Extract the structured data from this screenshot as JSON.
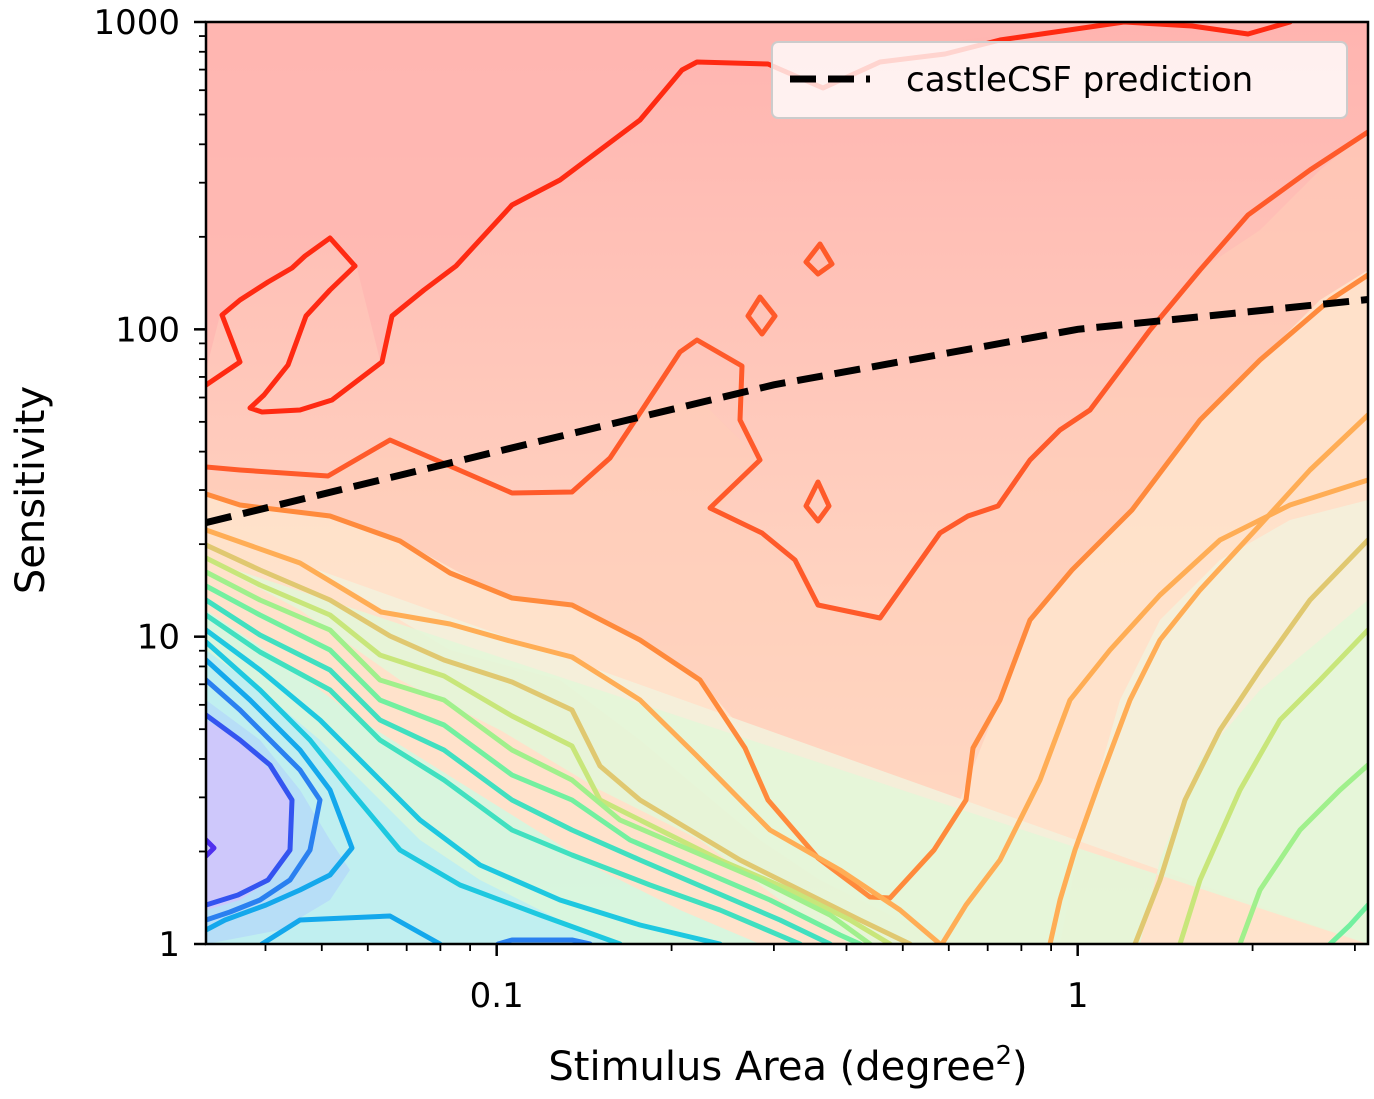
{
  "chart_data": {
    "type": "contour",
    "xlabel": "Stimulus Area (degree",
    "xlabel_superscript": "2",
    "xlabel_suffix": ")",
    "ylabel": "Sensitivity",
    "xscale": "log",
    "yscale": "log",
    "xlim": [
      0.0316,
      3.16
    ],
    "ylim": [
      1,
      1000
    ],
    "x_ticks": [
      {
        "value": 0.1,
        "label": "0.1"
      },
      {
        "value": 1,
        "label": "1"
      }
    ],
    "y_ticks": [
      {
        "value": 1,
        "label": "1"
      },
      {
        "value": 10,
        "label": "10"
      },
      {
        "value": 100,
        "label": "100"
      },
      {
        "value": 1000,
        "label": "1000"
      }
    ],
    "legend": {
      "position": "top-right",
      "entries": [
        {
          "label": "castleCSF prediction",
          "style": "dashed",
          "color": "#000000"
        }
      ]
    },
    "series": [
      {
        "name": "castleCSF prediction",
        "style": "dashed",
        "color": "#000000",
        "points": [
          [
            0.0316,
            23.5
          ],
          [
            0.1,
            40
          ],
          [
            0.3,
            66
          ],
          [
            1,
            100
          ],
          [
            3.16,
            125
          ]
        ]
      }
    ],
    "contour_colors": {
      "red": "#ff2a12",
      "red_orange": "#ff5a2a",
      "orange": "#ff8a3c",
      "light_orange": "#ffad55",
      "tan": "#e0c870",
      "yellow_green": "#c8e67a",
      "light_green": "#a0f08c",
      "green": "#72f0a0",
      "teal": "#40e0c0",
      "cyan": "#1ec8e0",
      "sky": "#14a8ec",
      "blue": "#2a80f0",
      "deep_blue": "#3454f0",
      "indigo": "#5030ee"
    },
    "grid": false
  }
}
